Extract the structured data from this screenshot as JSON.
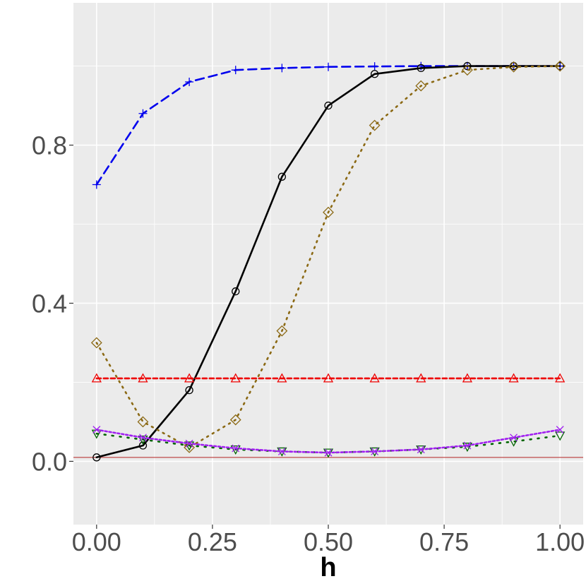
{
  "chart_data": {
    "type": "line",
    "title": "",
    "xlabel": "h",
    "ylabel": "",
    "xlim": [
      -0.05,
      1.05
    ],
    "ylim": [
      -0.16,
      1.16
    ],
    "x_ticks": [
      0.0,
      0.25,
      0.5,
      0.75,
      1.0
    ],
    "x_tick_labels": [
      "0.00",
      "0.25",
      "0.50",
      "0.75",
      "1.00"
    ],
    "y_ticks": [
      0.0,
      0.4,
      0.8
    ],
    "y_tick_labels": [
      "0.0",
      "0.4",
      "0.8"
    ],
    "grid": true,
    "reference_line": {
      "y": 0.01,
      "color": "#b22222"
    },
    "x": [
      0.0,
      0.1,
      0.2,
      0.3,
      0.4,
      0.5,
      0.6,
      0.7,
      0.8,
      0.9,
      1.0
    ],
    "series": [
      {
        "color": "#0000ee",
        "dash": "12,7",
        "marker": "plus",
        "values": [
          0.7,
          0.88,
          0.96,
          0.99,
          0.995,
          0.998,
          0.999,
          1.0,
          1.0,
          1.0,
          1.0
        ]
      },
      {
        "color": "#000000",
        "dash": "",
        "marker": "circle",
        "values": [
          0.01,
          0.04,
          0.18,
          0.43,
          0.72,
          0.9,
          0.98,
          0.995,
          1.0,
          1.0,
          1.0
        ]
      },
      {
        "color": "#8b6914",
        "dash": "2,7",
        "marker": "diamond",
        "values": [
          0.3,
          0.1,
          0.035,
          0.105,
          0.33,
          0.63,
          0.85,
          0.95,
          0.99,
          0.998,
          1.0
        ]
      },
      {
        "color": "#ee0000",
        "dash": "6,4",
        "marker": "triangle-up",
        "values": [
          0.21,
          0.21,
          0.21,
          0.21,
          0.21,
          0.21,
          0.21,
          0.21,
          0.21,
          0.21,
          0.21
        ]
      },
      {
        "color": "#006400",
        "dash": "2,9",
        "marker": "triangle-down",
        "values": [
          0.07,
          0.055,
          0.04,
          0.03,
          0.025,
          0.022,
          0.025,
          0.03,
          0.037,
          0.05,
          0.065
        ]
      },
      {
        "color": "#a020f0",
        "dash": "3,3",
        "marker": "x",
        "values": [
          0.08,
          0.06,
          0.045,
          0.033,
          0.025,
          0.022,
          0.025,
          0.03,
          0.04,
          0.06,
          0.08
        ]
      }
    ]
  }
}
